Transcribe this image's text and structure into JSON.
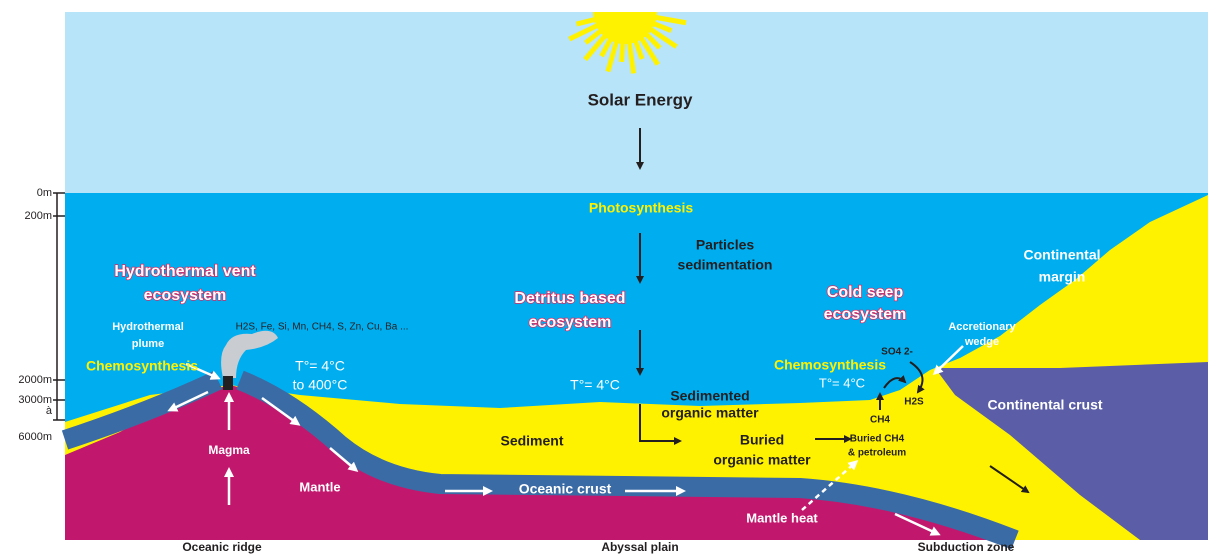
{
  "labels": {
    "solar": [
      "Solar Energy"
    ],
    "photosynthesis": [
      "Photosynthesis"
    ],
    "particles": [
      "Particles",
      "sedimentation"
    ],
    "vent_ecosystem": [
      "Hydrothermal vent",
      "ecosystem"
    ],
    "detritus_ecosystem": [
      "Detritus based",
      "ecosystem"
    ],
    "seep_ecosystem": [
      "Cold seep",
      "ecosystem"
    ],
    "continental_margin": [
      "Continental",
      "margin"
    ],
    "plume": [
      "Hydrothermal",
      "plume"
    ],
    "elements": [
      "H2S, Fe, Si, Mn, CH4, S, Zn, Cu, Ba ..."
    ],
    "accretionary": [
      "Accretionary",
      "wedge"
    ],
    "chemo_left": [
      "Chemosynthesis"
    ],
    "temp_vent": [
      "T°= 4°C",
      "to 400°C"
    ],
    "so4": [
      "SO4 2-"
    ],
    "chemo_right": [
      "Chemosynthesis"
    ],
    "temp_seep": [
      "T°= 4°C"
    ],
    "temp_plain": [
      "T°= 4°C"
    ],
    "sedimented": [
      "Sedimented",
      "organic matter"
    ],
    "ch4": [
      "CH4"
    ],
    "h2s": [
      "H2S"
    ],
    "continental_crust": [
      "Continental crust"
    ],
    "sediment": [
      "Sediment"
    ],
    "buried_om": [
      "Buried",
      "organic matter"
    ],
    "buried_ch4": [
      "Buried CH4",
      "& petroleum"
    ],
    "magma": [
      "Magma"
    ],
    "mantle": [
      "Mantle"
    ],
    "oceanic_crust": [
      "Oceanic crust"
    ],
    "mantle_heat": [
      "Mantle heat"
    ]
  },
  "depth_scale": [
    "0m",
    "200m",
    "2000m",
    "3000m",
    "à",
    "6000m"
  ],
  "zones": [
    "Oceanic ridge",
    "Abyssal plain",
    "Subduction zone"
  ]
}
